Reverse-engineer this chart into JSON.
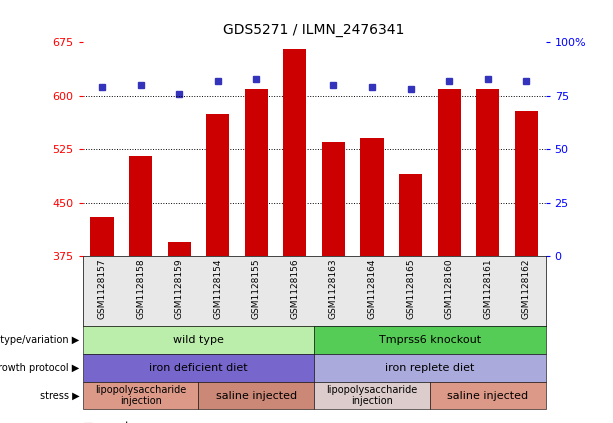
{
  "title": "GDS5271 / ILMN_2476341",
  "samples": [
    "GSM1128157",
    "GSM1128158",
    "GSM1128159",
    "GSM1128154",
    "GSM1128155",
    "GSM1128156",
    "GSM1128163",
    "GSM1128164",
    "GSM1128165",
    "GSM1128160",
    "GSM1128161",
    "GSM1128162"
  ],
  "counts": [
    430,
    515,
    395,
    575,
    610,
    665,
    535,
    540,
    490,
    610,
    610,
    578
  ],
  "percentiles": [
    79,
    80,
    76,
    82,
    83,
    83,
    80,
    79,
    78,
    82,
    83,
    82
  ],
  "ylim_left": [
    375,
    675
  ],
  "ylim_right": [
    0,
    100
  ],
  "yticks_left": [
    375,
    450,
    525,
    600,
    675
  ],
  "yticks_right": [
    0,
    25,
    50,
    75,
    100
  ],
  "bar_color": "#cc0000",
  "dot_color": "#3333bb",
  "row_labels": [
    "genotype/variation",
    "growth protocol",
    "stress"
  ],
  "row1_groups": [
    {
      "label": "wild type",
      "start": 0,
      "end": 6,
      "color": "#bbeeaa"
    },
    {
      "label": "Tmprss6 knockout",
      "start": 6,
      "end": 12,
      "color": "#55cc55"
    }
  ],
  "row2_groups": [
    {
      "label": "iron deficient diet",
      "start": 0,
      "end": 6,
      "color": "#7766cc"
    },
    {
      "label": "iron replete diet",
      "start": 6,
      "end": 12,
      "color": "#aaaadd"
    }
  ],
  "row3_groups": [
    {
      "label": "lipopolysaccharide\ninjection",
      "start": 0,
      "end": 3,
      "color": "#dd9988"
    },
    {
      "label": "saline injected",
      "start": 3,
      "end": 6,
      "color": "#cc8877"
    },
    {
      "label": "lipopolysaccharide\ninjection",
      "start": 6,
      "end": 9,
      "color": "#ddcccc"
    },
    {
      "label": "saline injected",
      "start": 9,
      "end": 12,
      "color": "#dd9988"
    }
  ]
}
